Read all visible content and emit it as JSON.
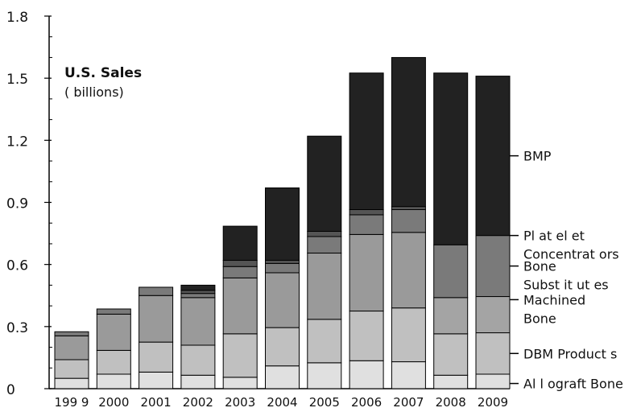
{
  "chart_data": {
    "type": "bar",
    "stacked": true,
    "title": "U.S. Sales",
    "subtitle": "( billions)",
    "xlabel": "",
    "ylabel": "",
    "ylim": [
      0,
      1.8
    ],
    "yticks": [
      "0",
      "0.3",
      "0.6",
      "0.9",
      "1.2",
      "1.5",
      "1.8"
    ],
    "ytick_values": [
      0,
      0.3,
      0.6,
      0.9,
      1.2,
      1.5,
      1.8
    ],
    "categories": [
      "199 9",
      "2000",
      "2001",
      "2002",
      "2003",
      "2004",
      "2005",
      "2006",
      "2007",
      "2008",
      "2009"
    ],
    "grid": false,
    "legend_position": "right",
    "series": [
      {
        "name": "Allograft Bone",
        "color": "#e0e0e0",
        "values": [
          0.05,
          0.07,
          0.08,
          0.065,
          0.055,
          0.11,
          0.125,
          0.135,
          0.13,
          0.065,
          0.07
        ]
      },
      {
        "name": "DBM Products",
        "color": "#c0c0c0",
        "values": [
          0.09,
          0.115,
          0.145,
          0.145,
          0.21,
          0.185,
          0.21,
          0.24,
          0.26,
          0.2,
          0.2
        ]
      },
      {
        "name": "Machined Bone",
        "color": "#a4a4a4",
        "values": [
          0.0,
          0.0,
          0.0,
          0.0,
          0.0,
          0.0,
          0.0,
          0.0,
          0.0,
          0.175,
          0.175
        ]
      },
      {
        "name": "Bone Substitutes",
        "color": "#9a9a9a",
        "values": [
          0.115,
          0.175,
          0.225,
          0.23,
          0.27,
          0.265,
          0.32,
          0.37,
          0.365,
          0.0,
          0.0
        ]
      },
      {
        "name": "Platelet Concentrators",
        "color": "#7a7a7a",
        "values": [
          0.02,
          0.025,
          0.04,
          0.02,
          0.055,
          0.045,
          0.08,
          0.095,
          0.11,
          0.255,
          0.295
        ]
      },
      {
        "name": "",
        "color": "#555555",
        "values": [
          0.0,
          0.0,
          0.0,
          0.015,
          0.03,
          0.015,
          0.025,
          0.025,
          0.015,
          0.0,
          0.0
        ]
      },
      {
        "name": "BMP",
        "color": "#222222",
        "values": [
          0.0,
          0.0,
          0.0,
          0.025,
          0.165,
          0.35,
          0.46,
          0.66,
          0.72,
          0.83,
          0.77
        ]
      }
    ],
    "legend_labels": [
      {
        "series": "BMP",
        "lines": [
          "BMP"
        ]
      },
      {
        "series": "Platelet Concentrators",
        "lines": [
          "Pl at el et",
          "Concentrat ors"
        ]
      },
      {
        "series": "Bone Substitutes",
        "lines": [
          "Bone",
          "Subst it ut es"
        ]
      },
      {
        "series": "Machined Bone",
        "lines": [
          "Machined",
          "Bone"
        ]
      },
      {
        "series": "DBM Products",
        "lines": [
          "DBM Product s"
        ]
      },
      {
        "series": "Allograft Bone",
        "lines": [
          "Al l ograft Bone"
        ]
      }
    ]
  }
}
